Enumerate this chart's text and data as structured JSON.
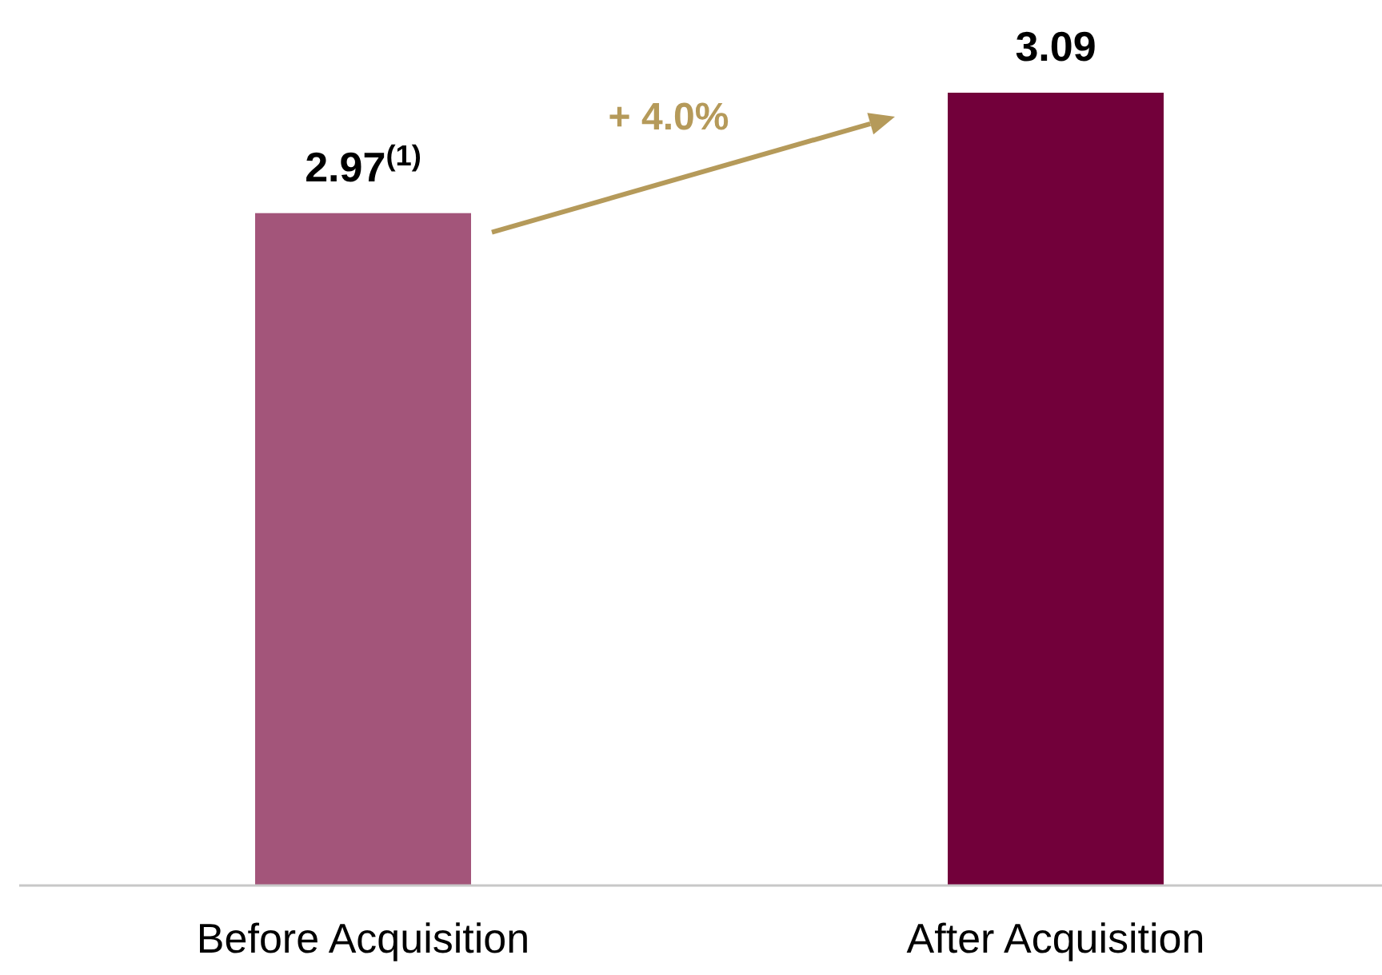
{
  "chart_data": {
    "type": "bar",
    "categories": [
      "Before Acquisition",
      "After Acquisition"
    ],
    "values": [
      2.97,
      3.09
    ],
    "colors": [
      "#a3557a",
      "#72003a"
    ],
    "ylim": [
      2.3,
      3.09
    ],
    "tick_labels": "x",
    "data_labels": true,
    "value_labels": [
      "2.97$^{(1)}$",
      "3.09"
    ],
    "annotations": [
      "+ 4.0%"
    ]
  }
}
